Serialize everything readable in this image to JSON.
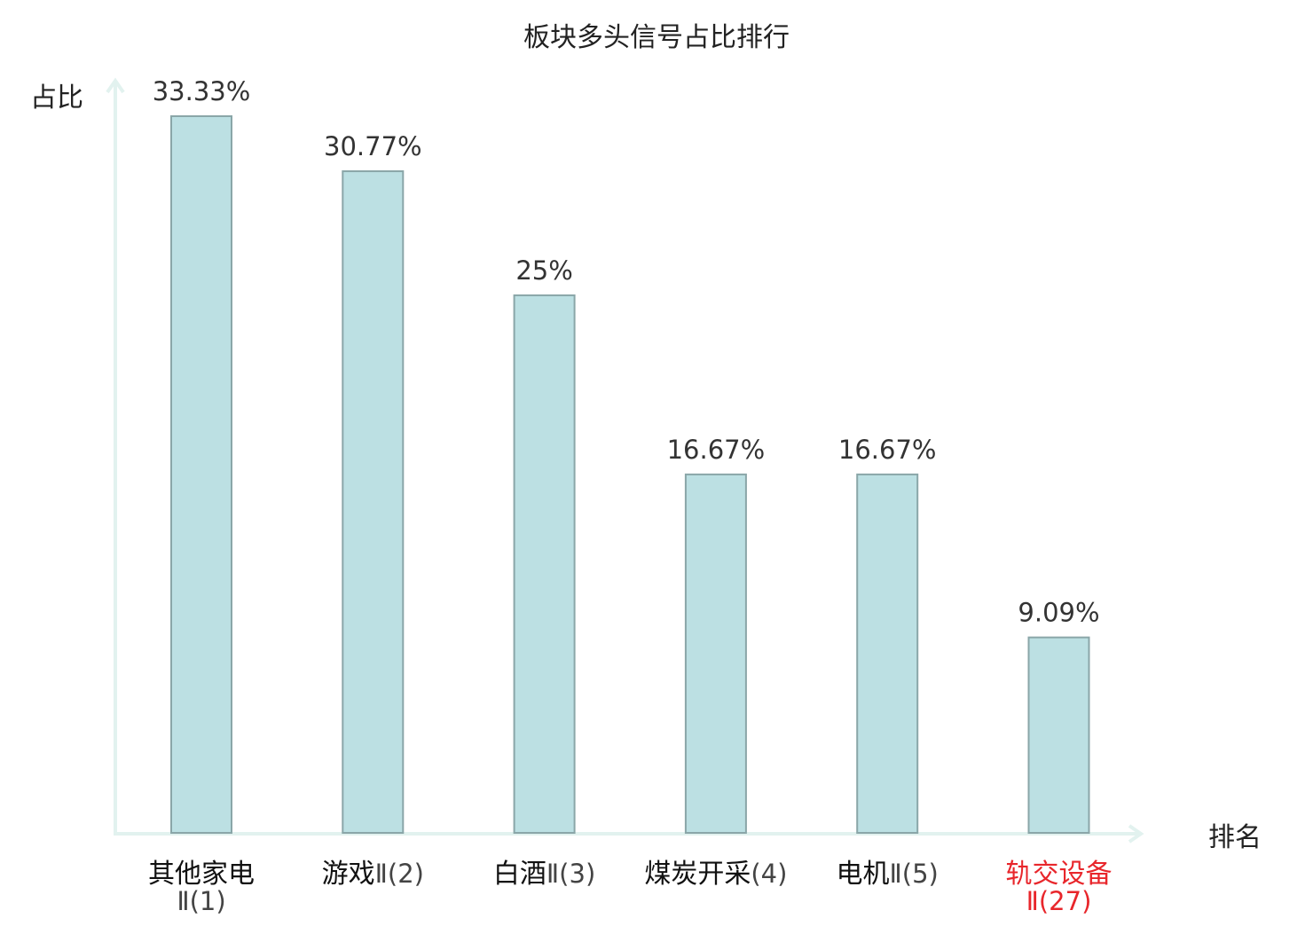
{
  "chart_data": {
    "type": "bar",
    "title": "板块多头信号占比排行",
    "ylabel": "占比",
    "xlabel": "排名",
    "categories": [
      {
        "name": "其他家电",
        "rank": "Ⅱ(1)",
        "highlight": false
      },
      {
        "name": "游戏",
        "rank": "Ⅱ(2)",
        "highlight": false
      },
      {
        "name": "白酒",
        "rank": "Ⅱ(3)",
        "highlight": false
      },
      {
        "name": "煤炭开采",
        "rank": "(4)",
        "highlight": false
      },
      {
        "name": "电机",
        "rank": "Ⅱ(5)",
        "highlight": false
      },
      {
        "name": "轨交设备",
        "rank": "Ⅱ(27)",
        "highlight": true
      }
    ],
    "values": [
      33.33,
      30.77,
      25,
      16.67,
      16.67,
      9.09
    ],
    "value_labels": [
      "33.33%",
      "30.77%",
      "25%",
      "16.67%",
      "16.67%",
      "9.09%"
    ],
    "ylim": [
      0,
      35
    ],
    "grid": false,
    "colors": {
      "bar_fill": "#bce0e3",
      "bar_stroke": "#8aa6a8",
      "axis": "#e2f2ef",
      "text": "#333333",
      "highlight": "#e8262b"
    }
  }
}
